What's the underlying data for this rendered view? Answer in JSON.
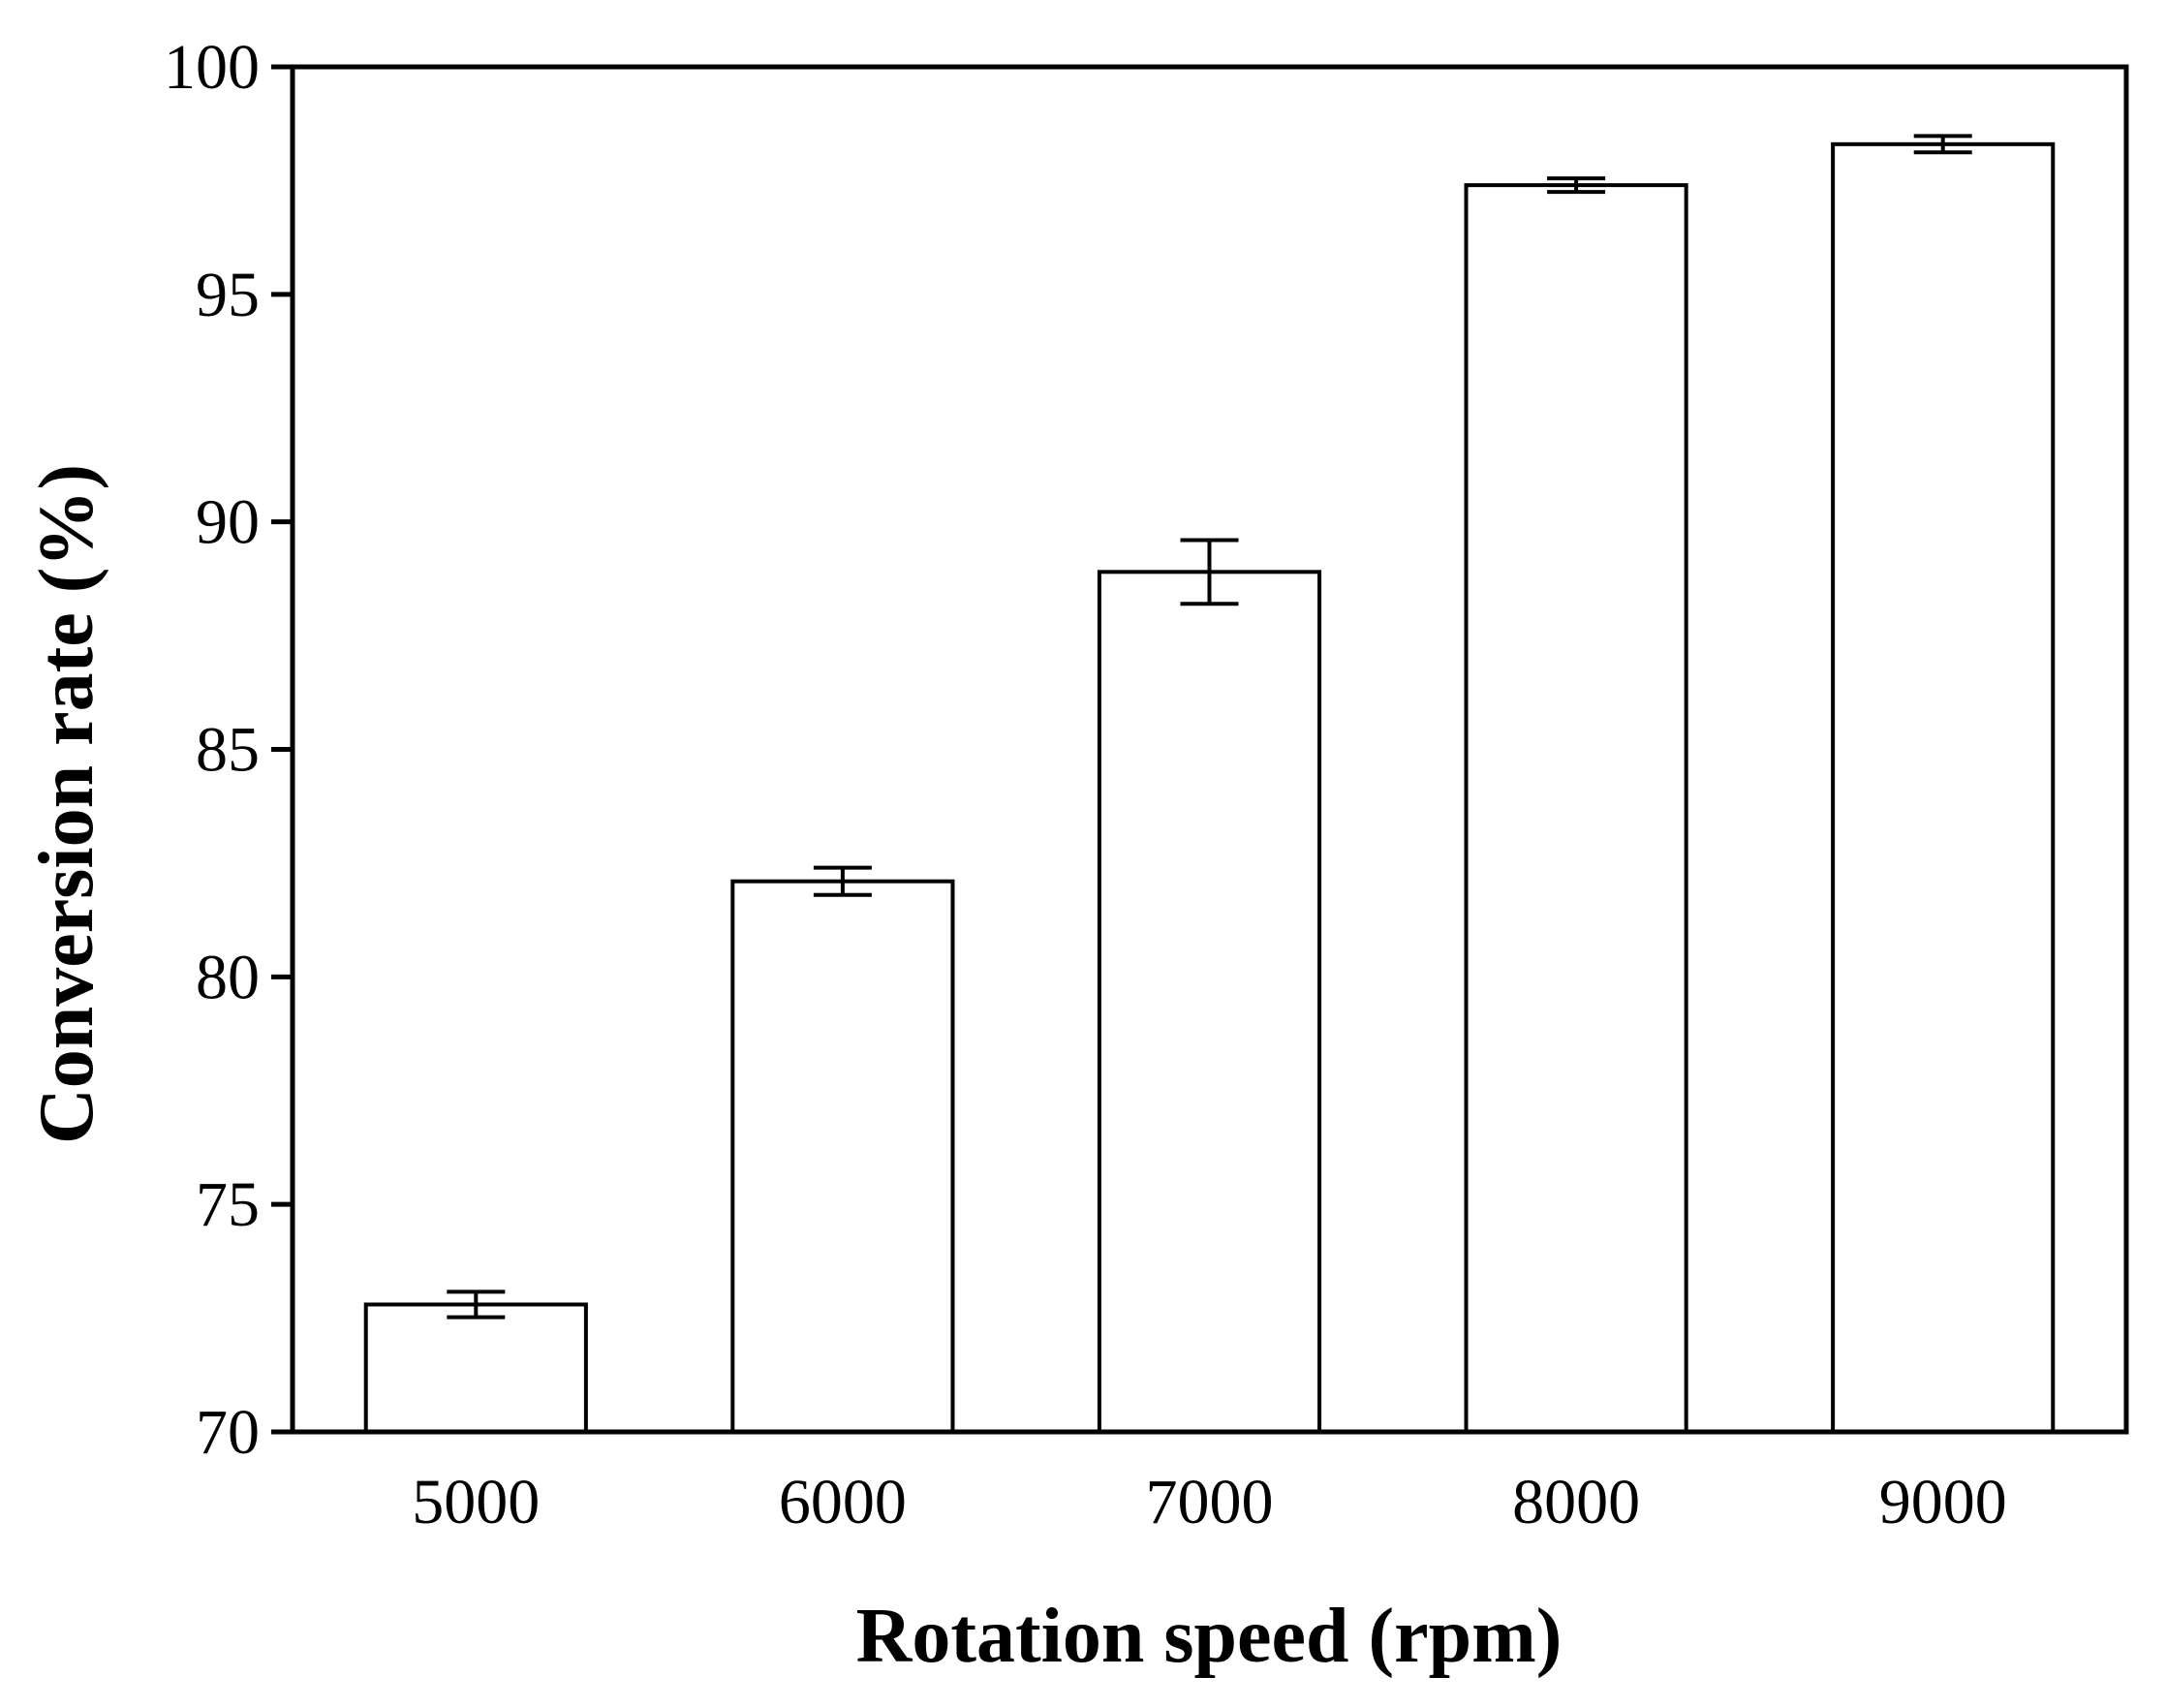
{
  "chart_data": {
    "type": "bar",
    "title": "",
    "xlabel": "Rotation speed (rpm)",
    "ylabel": "Conversion rate (%)",
    "categories": [
      "5000",
      "6000",
      "7000",
      "8000",
      "9000"
    ],
    "values": [
      72.8,
      82.1,
      88.9,
      97.4,
      98.3
    ],
    "errors": [
      0.28,
      0.3,
      0.7,
      0.15,
      0.18
    ],
    "ylim": [
      70,
      100
    ],
    "yticks": [
      70,
      75,
      80,
      85,
      90,
      95,
      100
    ],
    "grid": false,
    "bar_fill": "#ffffff",
    "bar_stroke": "#000000"
  }
}
